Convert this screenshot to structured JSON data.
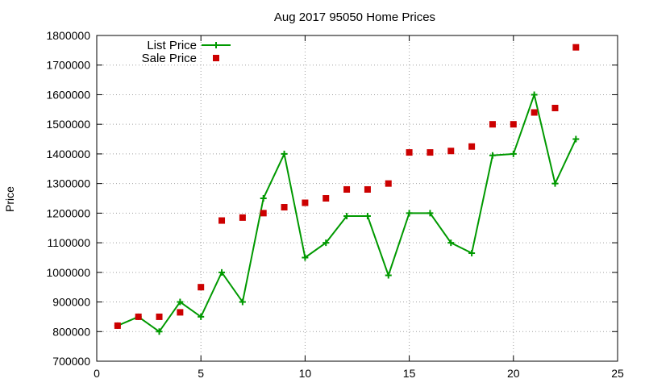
{
  "chart_data": {
    "type": "line",
    "title": "Aug 2017 95050 Home Prices",
    "xlabel": "",
    "ylabel": "Price",
    "xlim": [
      0,
      25
    ],
    "ylim": [
      700000,
      1800000
    ],
    "x_ticks": [
      0,
      5,
      10,
      15,
      20,
      25
    ],
    "y_ticks": [
      700000,
      800000,
      900000,
      1000000,
      1100000,
      1200000,
      1300000,
      1400000,
      1500000,
      1600000,
      1700000,
      1800000
    ],
    "grid": true,
    "legend_position": "top-left",
    "series": [
      {
        "name": "List Price",
        "style": "line-with-plus-markers",
        "color": "#009900",
        "x": [
          1,
          2,
          3,
          4,
          5,
          6,
          7,
          8,
          9,
          10,
          11,
          12,
          13,
          14,
          15,
          16,
          17,
          18,
          19,
          20,
          21,
          22,
          23
        ],
        "y": [
          820000,
          850000,
          800000,
          900000,
          850000,
          1000000,
          900000,
          1250000,
          1400000,
          1050000,
          1100000,
          1190000,
          1190000,
          990000,
          1200000,
          1200000,
          1100000,
          1065000,
          1395000,
          1400000,
          1600000,
          1300000,
          1450000
        ]
      },
      {
        "name": "Sale Price",
        "style": "square-markers",
        "color": "#cc0000",
        "x": [
          1,
          2,
          3,
          4,
          5,
          6,
          7,
          8,
          9,
          10,
          11,
          12,
          13,
          14,
          15,
          16,
          17,
          18,
          19,
          20,
          21,
          22,
          23
        ],
        "y": [
          820000,
          850000,
          850000,
          865000,
          950000,
          1175000,
          1185000,
          1200000,
          1220000,
          1235000,
          1250000,
          1280000,
          1280000,
          1300000,
          1405000,
          1405000,
          1410000,
          1425000,
          1500000,
          1500000,
          1540000,
          1555000,
          1760000
        ]
      }
    ]
  }
}
